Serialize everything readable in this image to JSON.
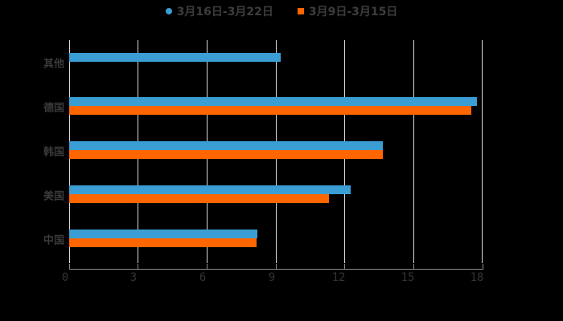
{
  "chart_data": {
    "type": "bar",
    "orientation": "horizontal",
    "title": "",
    "xlabel": "",
    "ylabel": "",
    "categories": [
      "其他",
      "德国",
      "韩国",
      "美国",
      "中国"
    ],
    "series": [
      {
        "name": "3月16日-3月22日",
        "color": "#3a9dd4",
        "values": [
          9.2,
          17.75,
          13.65,
          12.25,
          8.2
        ]
      },
      {
        "name": "3月9日-3月15日",
        "color": "#ff6600",
        "values": [
          null,
          17.5,
          13.65,
          11.3,
          8.15
        ]
      }
    ],
    "xlim": [
      0,
      18
    ],
    "xticks": [
      "0",
      "3",
      "6",
      "9",
      "12",
      "15",
      "18"
    ],
    "grid": true,
    "legend_position": "top"
  },
  "legend": {
    "series1": "3月16日-3月22日",
    "series2": "3月9日-3月15日"
  },
  "axis": {
    "ticks": [
      "0",
      "3",
      "6",
      "9",
      "12",
      "15",
      "18"
    ]
  },
  "categories": {
    "c0": "其他",
    "c1": "德国",
    "c2": "韩国",
    "c3": "美国",
    "c4": "中国"
  }
}
